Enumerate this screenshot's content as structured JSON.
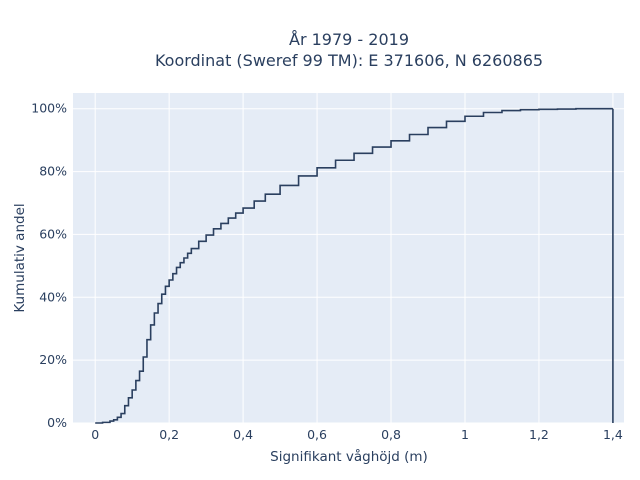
{
  "chart_data": {
    "type": "line",
    "line_shape": "step",
    "title": "År 1979 - 2019",
    "subtitle": "Koordinat (Sweref 99 TM): E 371606, N 6260865",
    "xlabel": "Signifikant våghöjd (m)",
    "ylabel": "Kumulativ andel",
    "xlim": [
      -0.06,
      1.43
    ],
    "ylim": [
      0,
      1.05
    ],
    "x_ticks": [
      0,
      0.2,
      0.4,
      0.6,
      0.8,
      1.0,
      1.2,
      1.4
    ],
    "x_tick_labels": [
      "0",
      "0,2",
      "0,4",
      "0,6",
      "0,8",
      "1",
      "1,2",
      "1,4"
    ],
    "y_ticks": [
      0,
      0.2,
      0.4,
      0.6,
      0.8,
      1.0
    ],
    "y_tick_labels": [
      "0%",
      "20%",
      "40%",
      "60%",
      "80%",
      "100%"
    ],
    "grid": true,
    "colors": {
      "plot_bg": "#e5ecf6",
      "grid": "#ffffff",
      "line": "#2a3f5f",
      "text": "#2a3f5f"
    },
    "x": [
      0.0,
      0.02,
      0.04,
      0.05,
      0.06,
      0.07,
      0.08,
      0.09,
      0.1,
      0.11,
      0.12,
      0.13,
      0.14,
      0.15,
      0.16,
      0.17,
      0.18,
      0.19,
      0.2,
      0.21,
      0.22,
      0.23,
      0.24,
      0.25,
      0.26,
      0.28,
      0.3,
      0.32,
      0.34,
      0.36,
      0.38,
      0.4,
      0.43,
      0.46,
      0.5,
      0.55,
      0.6,
      0.65,
      0.7,
      0.75,
      0.8,
      0.85,
      0.9,
      0.95,
      1.0,
      1.05,
      1.1,
      1.15,
      1.2,
      1.25,
      1.3,
      1.35,
      1.38,
      1.4
    ],
    "y": [
      0.0,
      0.002,
      0.006,
      0.01,
      0.018,
      0.03,
      0.055,
      0.08,
      0.105,
      0.135,
      0.165,
      0.21,
      0.265,
      0.312,
      0.35,
      0.38,
      0.41,
      0.435,
      0.455,
      0.475,
      0.495,
      0.51,
      0.525,
      0.54,
      0.555,
      0.578,
      0.598,
      0.618,
      0.635,
      0.652,
      0.668,
      0.684,
      0.706,
      0.728,
      0.756,
      0.786,
      0.812,
      0.836,
      0.858,
      0.878,
      0.898,
      0.918,
      0.94,
      0.96,
      0.976,
      0.988,
      0.994,
      0.997,
      0.998,
      0.999,
      1.0,
      1.0,
      1.0,
      1.0
    ]
  }
}
